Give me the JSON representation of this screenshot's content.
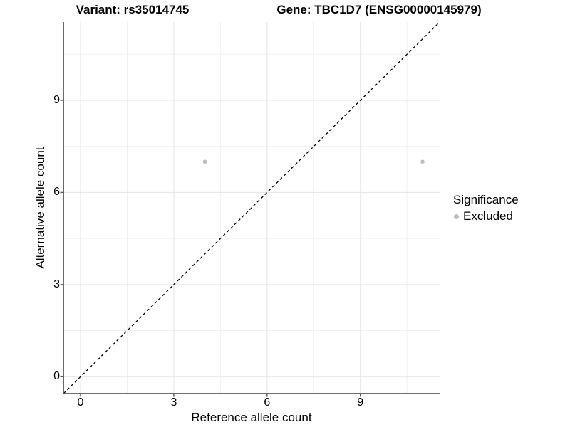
{
  "figure": {
    "title_left": "Variant: rs35014745",
    "title_right": "Gene: TBC1D7 (ENSG00000145979)"
  },
  "chart_data": {
    "type": "scatter",
    "title": "Variant: rs35014745    Gene: TBC1D7 (ENSG00000145979)",
    "xlabel": "Reference allele count",
    "ylabel": "Alternative allele count",
    "xlim": [
      -0.55,
      11.55
    ],
    "ylim": [
      -0.55,
      11.55
    ],
    "xticks": [
      0,
      3,
      6,
      9
    ],
    "yticks": [
      0,
      3,
      6,
      9
    ],
    "xticks_minor": [
      1.5,
      4.5,
      7.5,
      10.5
    ],
    "yticks_minor": [
      1.5,
      4.5,
      7.5,
      10.5
    ],
    "grid": "major+minor",
    "series": [
      {
        "name": "Excluded",
        "color": "#bdbdbd",
        "points": [
          {
            "x": 4,
            "y": 7
          },
          {
            "x": 11,
            "y": 7
          }
        ]
      }
    ],
    "reference_line": {
      "type": "identity",
      "style": "dashed",
      "color": "#000000"
    },
    "legend": {
      "title": "Significance",
      "position": "right",
      "items": [
        {
          "label": "Excluded",
          "color": "#bdbdbd"
        }
      ]
    }
  },
  "colors": {
    "background": "#ffffff",
    "grid_major": "#e4e4e4",
    "grid_minor": "#f0f0f0",
    "axis_line": "#5a5a5a",
    "tick_mark": "#5a5a5a",
    "text": "#000000",
    "point": "#bdbdbd"
  }
}
